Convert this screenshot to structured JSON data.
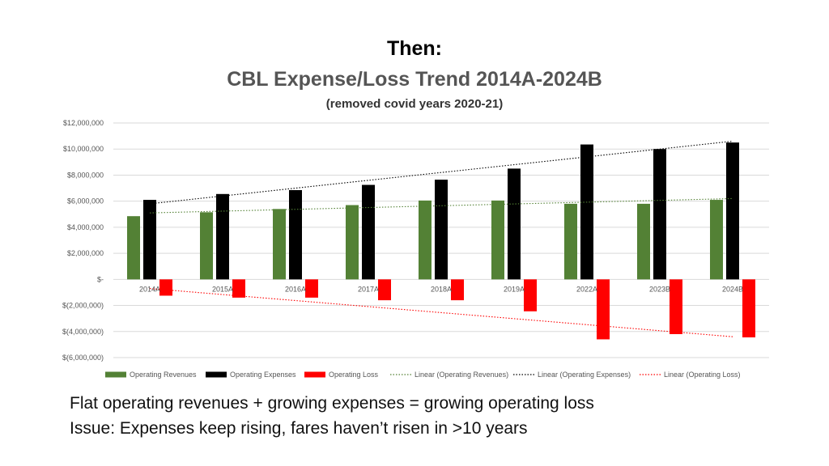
{
  "title_line1": "Then:",
  "title_line2": "CBL Expense/Loss Trend 2014A-2024B",
  "subtitle": "(removed covid years 2020-21)",
  "caption_line1": "Flat operating revenues + growing expenses = growing operating loss",
  "caption_line2": "Issue: Expenses keep rising, fares haven’t risen in >10 years",
  "chart_data": {
    "type": "bar",
    "categories": [
      "2014A",
      "2015A",
      "2016A",
      "2017A",
      "2018A",
      "2019A",
      "2022A",
      "2023B",
      "2024B"
    ],
    "series": [
      {
        "name": "Operating Revenues",
        "color": "#538135",
        "values": [
          4850000,
          5150000,
          5400000,
          5700000,
          6050000,
          6050000,
          5800000,
          5800000,
          6100000
        ]
      },
      {
        "name": "Operating Expenses",
        "color": "#000000",
        "values": [
          6100000,
          6550000,
          6850000,
          7250000,
          7650000,
          8500000,
          10350000,
          10000000,
          10500000
        ]
      },
      {
        "name": "Operating Loss",
        "color": "#ff0000",
        "values": [
          -1250000,
          -1400000,
          -1400000,
          -1600000,
          -1600000,
          -2450000,
          -4600000,
          -4200000,
          -4450000
        ]
      }
    ],
    "trendlines": [
      {
        "name": "Linear (Operating Revenues)",
        "color": "#538135",
        "start": 5100000,
        "end": 6200000
      },
      {
        "name": "Linear (Operating Expenses)",
        "color": "#000000",
        "start": 5800000,
        "end": 10600000
      },
      {
        "name": "Linear (Operating Loss)",
        "color": "#ff0000",
        "start": -700000,
        "end": -4400000
      }
    ],
    "yticks": [
      12000000,
      10000000,
      8000000,
      6000000,
      4000000,
      2000000,
      0,
      -2000000,
      -4000000,
      -6000000
    ],
    "ytick_labels": [
      "$12,000,000",
      "$10,000,000",
      "$8,000,000",
      "$6,000,000",
      "$4,000,000",
      "$2,000,000",
      "$-",
      "$(2,000,000)",
      "$(4,000,000)",
      "$(6,000,000)"
    ],
    "ylim": [
      -6000000,
      12000000
    ],
    "grid": true,
    "legend_position": "bottom"
  }
}
